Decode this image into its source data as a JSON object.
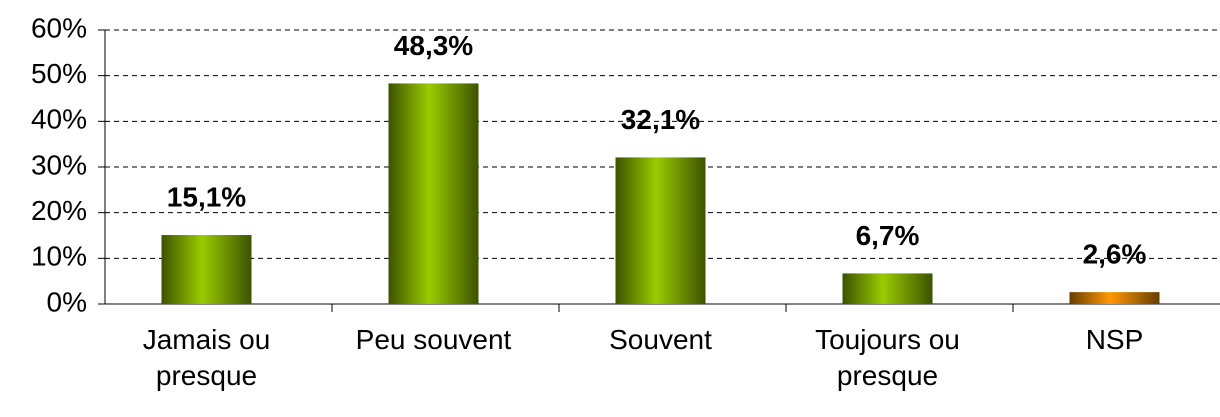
{
  "chart_data": {
    "type": "bar",
    "categories": [
      "Jamais ou presque",
      "Peu souvent",
      "Souvent",
      "Toujours ou presque",
      "NSP"
    ],
    "values": [
      15.1,
      48.3,
      32.1,
      6.7,
      2.6
    ],
    "value_labels": [
      "15,1%",
      "48,3%",
      "32,1%",
      "6,7%",
      "2,6%"
    ],
    "colors": [
      "#99cc00",
      "#99cc00",
      "#99cc00",
      "#99cc00",
      "#ff9900"
    ],
    "ylim": [
      0,
      60
    ],
    "yticks": [
      {
        "value": 0,
        "label": "0%"
      },
      {
        "value": 10,
        "label": "10%"
      },
      {
        "value": 20,
        "label": "20%"
      },
      {
        "value": 30,
        "label": "30%"
      },
      {
        "value": 40,
        "label": "40%"
      },
      {
        "value": 50,
        "label": "50%"
      },
      {
        "value": 60,
        "label": "60%"
      }
    ],
    "grid": true
  }
}
